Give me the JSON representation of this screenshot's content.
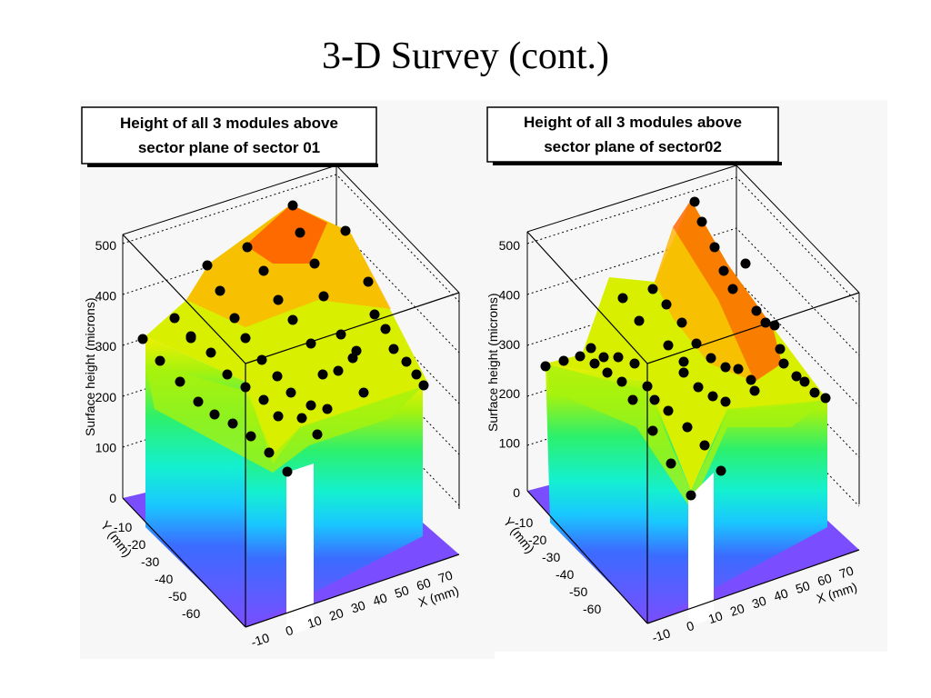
{
  "slide": {
    "title": "3-D Survey (cont.)"
  },
  "chart_data": [
    {
      "type": "surface",
      "title": "Height of all 3 modules above sector plane of sector 01",
      "title_lines": [
        "Height of all 3 modules above",
        "sector plane of sector 01"
      ],
      "zlabel": "Surface height (microns)",
      "ylabel": "Y (mm)",
      "xlabel": "X (mm)",
      "z_ticks": [
        "0",
        "100",
        "200",
        "300",
        "400",
        "500"
      ],
      "y_ticks": [
        "-10",
        "-20",
        "-30",
        "-40",
        "-50",
        "-60"
      ],
      "x_ticks": [
        "-10",
        "0",
        "10",
        "20",
        "30",
        "40",
        "50",
        "60",
        "70"
      ],
      "zlim": [
        0,
        550
      ],
      "palette": [
        "#7a4dff",
        "#3b6cff",
        "#19c8ff",
        "#14f0d0",
        "#2cf06c",
        "#a6f20e",
        "#f0f000",
        "#ffb400",
        "#ff6a00",
        "#ff2a00"
      ]
    },
    {
      "type": "surface",
      "title": "Height of all 3 modules above sector plane of sector02",
      "title_lines": [
        "Height of all 3 modules above",
        "sector plane of sector02"
      ],
      "zlabel": "Surface height (microns)",
      "ylabel": "Y (mm)",
      "xlabel": "X (mm)",
      "z_ticks": [
        "0",
        "100",
        "200",
        "300",
        "400",
        "500"
      ],
      "y_ticks": [
        "-10",
        "-20",
        "-30",
        "-40",
        "-50",
        "-60"
      ],
      "x_ticks": [
        "-10",
        "0",
        "10",
        "20",
        "30",
        "40",
        "50",
        "60",
        "70"
      ],
      "zlim": [
        0,
        550
      ],
      "palette": [
        "#7a4dff",
        "#3b6cff",
        "#19c8ff",
        "#14f0d0",
        "#2cf06c",
        "#a6f20e",
        "#f0f000",
        "#ffb400",
        "#ff6a00",
        "#ff2a00"
      ]
    }
  ]
}
